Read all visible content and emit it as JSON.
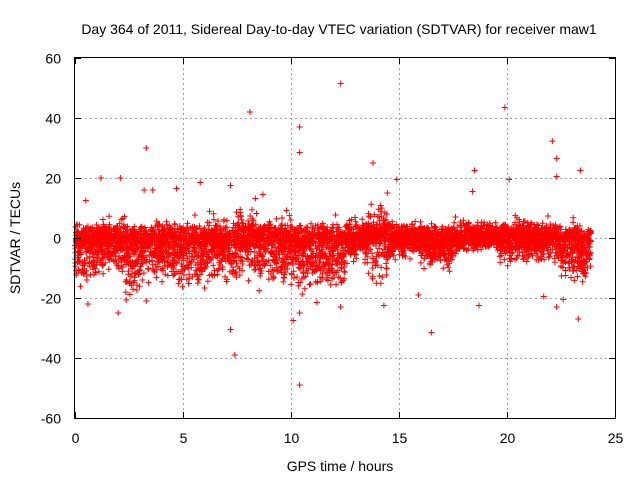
{
  "chart_data": {
    "type": "scatter",
    "title": "Day 364 of 2011, Sidereal Day-to-day VTEC variation (SDTVAR) for receiver maw1",
    "xlabel": "GPS time / hours",
    "ylabel": "SDTVAR / TECUs",
    "xlim": [
      0,
      25
    ],
    "ylim": [
      -60,
      60
    ],
    "xticks": [
      "0",
      "5",
      "10",
      "15",
      "20",
      "25"
    ],
    "yticks": [
      "60",
      "40",
      "20",
      "0",
      "-20",
      "-40",
      "-60"
    ],
    "grid": true,
    "marker": "+",
    "color": "#ff0000",
    "outliers": [
      {
        "x": 12.3,
        "y": 51.5
      },
      {
        "x": 19.9,
        "y": 43.5
      },
      {
        "x": 8.1,
        "y": 42.0
      },
      {
        "x": 10.4,
        "y": 37.0
      },
      {
        "x": 22.1,
        "y": 32.3
      },
      {
        "x": 3.3,
        "y": 30.0
      },
      {
        "x": 10.4,
        "y": 28.5
      },
      {
        "x": 22.3,
        "y": 26.5
      },
      {
        "x": 13.8,
        "y": 25.0
      },
      {
        "x": 18.5,
        "y": 22.5
      },
      {
        "x": 23.4,
        "y": 22.5
      },
      {
        "x": 22.3,
        "y": 20.5
      },
      {
        "x": 1.2,
        "y": 20.0
      },
      {
        "x": 2.1,
        "y": 20.0
      },
      {
        "x": 14.9,
        "y": 19.5
      },
      {
        "x": 20.1,
        "y": 19.5
      },
      {
        "x": 5.8,
        "y": 18.5
      },
      {
        "x": 7.2,
        "y": 17.5
      },
      {
        "x": 4.7,
        "y": 16.5
      },
      {
        "x": 3.2,
        "y": 16.0
      },
      {
        "x": 3.6,
        "y": 16.0
      },
      {
        "x": 18.4,
        "y": 15.5
      },
      {
        "x": 8.7,
        "y": 14.5
      },
      {
        "x": 0.5,
        "y": 12.5
      },
      {
        "x": 10.4,
        "y": -25.0
      },
      {
        "x": 12.3,
        "y": -23.0
      },
      {
        "x": 11.2,
        "y": -21.5
      },
      {
        "x": 14.3,
        "y": -22.5
      },
      {
        "x": 22.3,
        "y": -23.0
      },
      {
        "x": 2.0,
        "y": -25.0
      },
      {
        "x": 23.3,
        "y": -27.0
      },
      {
        "x": 10.1,
        "y": -27.5
      },
      {
        "x": 7.2,
        "y": -30.5
      },
      {
        "x": 16.5,
        "y": -31.5
      },
      {
        "x": 7.4,
        "y": -39.0
      },
      {
        "x": 10.4,
        "y": -49.0
      },
      {
        "x": 18.7,
        "y": -22.5
      },
      {
        "x": 21.7,
        "y": -19.5
      },
      {
        "x": 15.9,
        "y": -19.0
      },
      {
        "x": 0.6,
        "y": -22.0
      },
      {
        "x": 22.6,
        "y": -20.5
      },
      {
        "x": 3.3,
        "y": -21.0
      }
    ],
    "dense_band": [
      {
        "x0": 0.0,
        "x1": 1.0,
        "ymin": -18,
        "ymax": 8
      },
      {
        "x0": 1.0,
        "x1": 2.3,
        "ymin": -15,
        "ymax": 10
      },
      {
        "x0": 2.3,
        "x1": 3.0,
        "ymin": -26,
        "ymax": 8
      },
      {
        "x0": 3.0,
        "x1": 4.5,
        "ymin": -16,
        "ymax": 8
      },
      {
        "x0": 4.5,
        "x1": 6.0,
        "ymin": -19,
        "ymax": 8
      },
      {
        "x0": 6.0,
        "x1": 7.5,
        "ymin": -17,
        "ymax": 10
      },
      {
        "x0": 7.5,
        "x1": 8.5,
        "ymin": -18,
        "ymax": 14
      },
      {
        "x0": 8.5,
        "x1": 10.0,
        "ymin": -18,
        "ymax": 10
      },
      {
        "x0": 10.0,
        "x1": 11.5,
        "ymin": -20,
        "ymax": 9
      },
      {
        "x0": 11.5,
        "x1": 12.5,
        "ymin": -21,
        "ymax": 9
      },
      {
        "x0": 12.5,
        "x1": 13.5,
        "ymin": -11,
        "ymax": 9
      },
      {
        "x0": 13.5,
        "x1": 14.5,
        "ymin": -17,
        "ymax": 16
      },
      {
        "x0": 14.5,
        "x1": 16.0,
        "ymin": -9,
        "ymax": 8
      },
      {
        "x0": 16.0,
        "x1": 17.5,
        "ymin": -12,
        "ymax": 7
      },
      {
        "x0": 17.5,
        "x1": 19.5,
        "ymin": -6,
        "ymax": 7
      },
      {
        "x0": 19.5,
        "x1": 21.0,
        "ymin": -11,
        "ymax": 10
      },
      {
        "x0": 21.0,
        "x1": 22.5,
        "ymin": -10,
        "ymax": 8
      },
      {
        "x0": 22.5,
        "x1": 23.9,
        "ymin": -17,
        "ymax": 7
      }
    ]
  }
}
